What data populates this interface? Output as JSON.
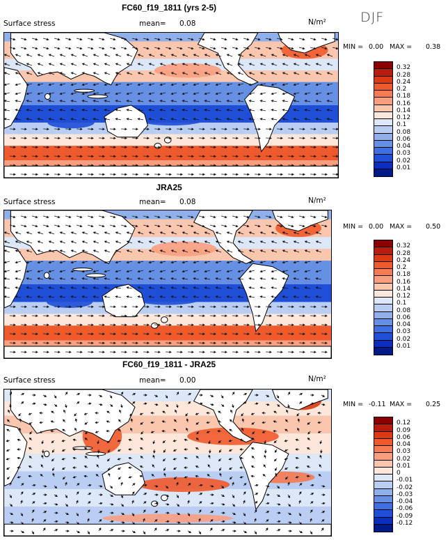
{
  "season": "DJF",
  "panels": [
    {
      "title": "FC60_f19_1811 (yrs 2-5)",
      "subtitle": "Surface stress",
      "mean_label": "mean=",
      "mean_value": "0.08",
      "unit": "N/m²",
      "min_label": "MIN =",
      "min_value": "0.00",
      "max_label": "MAX =",
      "max_value": "0.38",
      "colorbar": [
        "0.32",
        "0.28",
        "0.24",
        "0.2",
        "0.18",
        "0.16",
        "0.14",
        "0.12",
        "0.1",
        "0.08",
        "0.06",
        "0.04",
        "0.03",
        "0.02",
        "0.01"
      ]
    },
    {
      "title": "JRA25",
      "subtitle": "Surface stress",
      "mean_label": "mean=",
      "mean_value": "0.08",
      "unit": "N/m²",
      "min_label": "MIN =",
      "min_value": "0.00",
      "max_label": "MAX =",
      "max_value": "0.50",
      "colorbar": [
        "0.32",
        "0.28",
        "0.24",
        "0.2",
        "0.18",
        "0.16",
        "0.14",
        "0.12",
        "0.1",
        "0.08",
        "0.06",
        "0.04",
        "0.03",
        "0.02",
        "0.01"
      ]
    },
    {
      "title": "FC60_f19_1811 - JRA25",
      "subtitle": "Surface stress",
      "mean_label": "mean=",
      "mean_value": "0.00",
      "unit": "N/m²",
      "min_label": "MIN =",
      "min_value": "-0.11",
      "max_label": "MAX =",
      "max_value": "0.25",
      "colorbar": [
        "0.12",
        "0.09",
        "0.06",
        "0.04",
        "0.03",
        "0.02",
        "0.01",
        "0",
        "-0.01",
        "-0.02",
        "-0.03",
        "-0.04",
        "-0.06",
        "-0.09",
        "-0.12"
      ]
    }
  ],
  "colors": {
    "ramp": [
      "#8b0000",
      "#b71c0c",
      "#dc3a12",
      "#ef5a2c",
      "#f67a52",
      "#f99f80",
      "#fbc6ae",
      "#fde6da",
      "#dce7f8",
      "#b9cef2",
      "#8fb0ea",
      "#6690e4",
      "#3f6fe0",
      "#1f4fd6",
      "#0a2fbe",
      "#001a8a"
    ],
    "land": "#ffffff",
    "coast": "#000000",
    "arrow": "#111111"
  },
  "chart_data": [
    {
      "type": "heatmap",
      "title": "FC60_f19_1811 (yrs 2-5)",
      "subtitle": "Surface stress",
      "units": "N/m²",
      "season": "DJF",
      "mean": 0.08,
      "min": 0.0,
      "max": 0.38,
      "levels": [
        0.01,
        0.02,
        0.03,
        0.04,
        0.06,
        0.08,
        0.1,
        0.12,
        0.14,
        0.16,
        0.18,
        0.2,
        0.24,
        0.28,
        0.32
      ],
      "overlay": "wind stress vectors"
    },
    {
      "type": "heatmap",
      "title": "JRA25",
      "subtitle": "Surface stress",
      "units": "N/m²",
      "season": "DJF",
      "mean": 0.08,
      "min": 0.0,
      "max": 0.5,
      "levels": [
        0.01,
        0.02,
        0.03,
        0.04,
        0.06,
        0.08,
        0.1,
        0.12,
        0.14,
        0.16,
        0.18,
        0.2,
        0.24,
        0.28,
        0.32
      ],
      "overlay": "wind stress vectors"
    },
    {
      "type": "heatmap",
      "title": "FC60_f19_1811 - JRA25",
      "subtitle": "Surface stress",
      "units": "N/m²",
      "season": "DJF",
      "mean": 0.0,
      "min": -0.11,
      "max": 0.25,
      "levels": [
        -0.12,
        -0.09,
        -0.06,
        -0.04,
        -0.03,
        -0.02,
        -0.01,
        0,
        0.01,
        0.02,
        0.03,
        0.04,
        0.06,
        0.09,
        0.12
      ],
      "overlay": "wind stress difference vectors"
    }
  ]
}
